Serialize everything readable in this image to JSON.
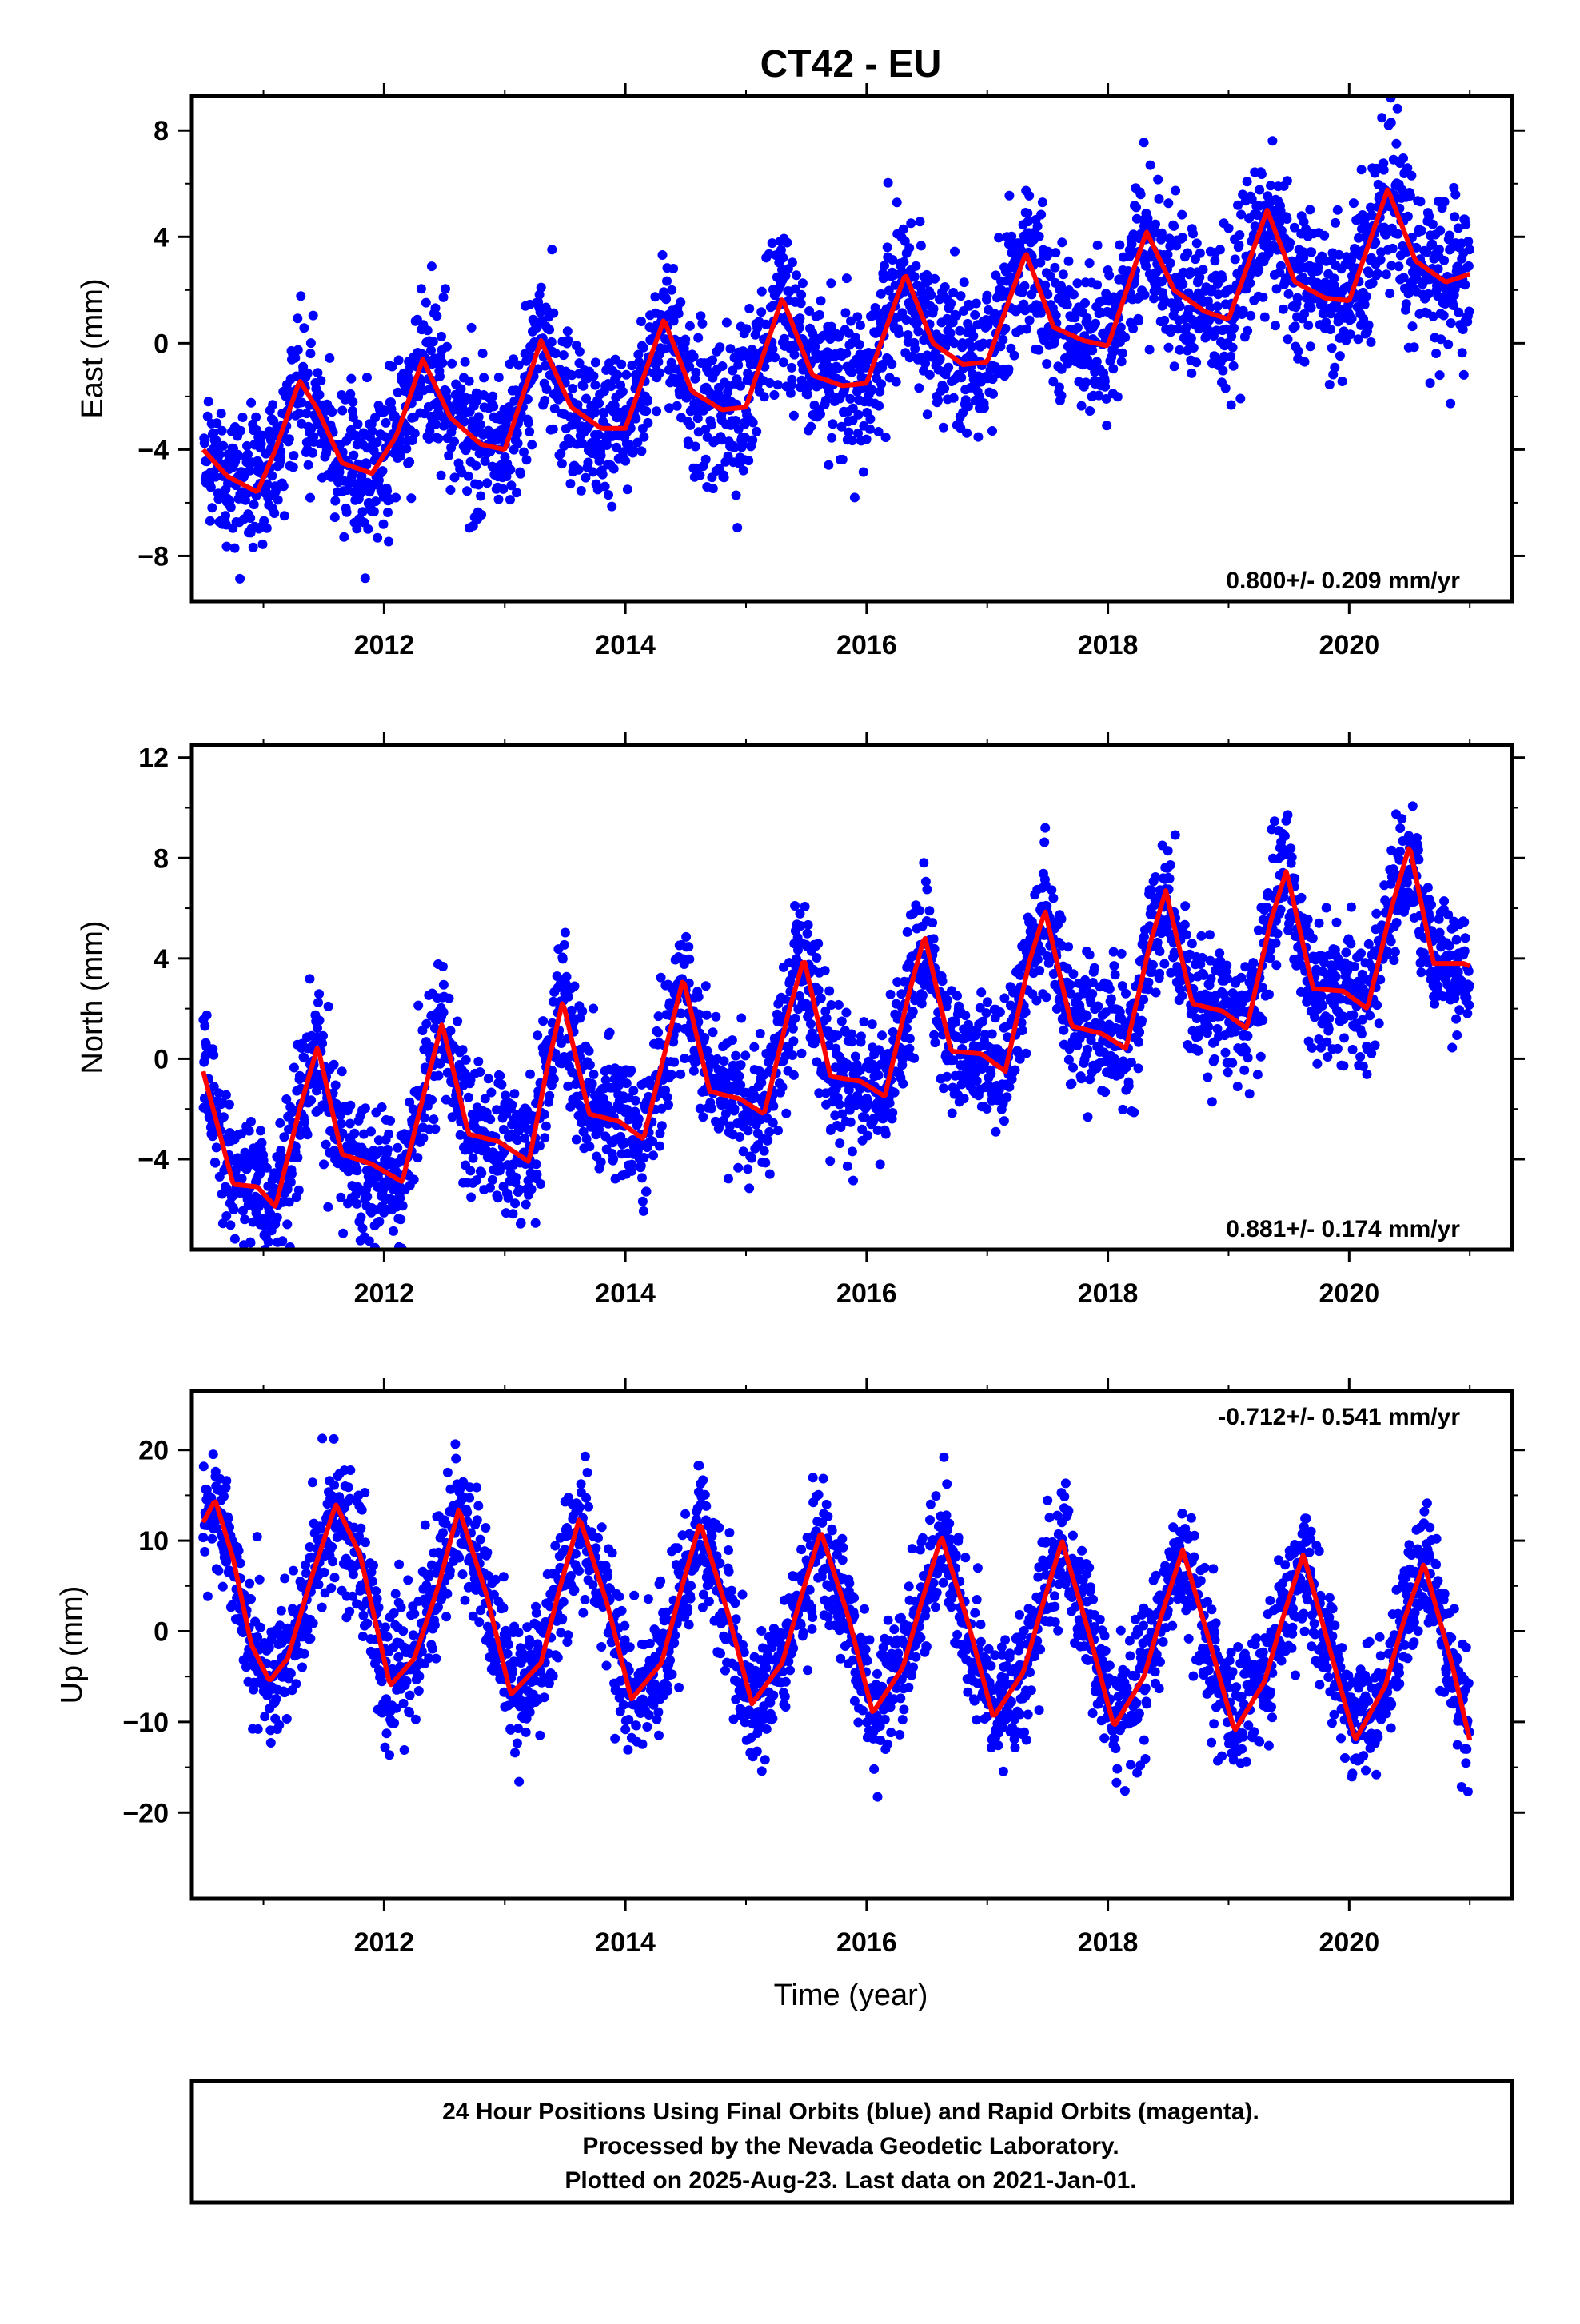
{
  "title": "CT42 - EU",
  "colors": {
    "points": "#0000ff",
    "model": "#ff0000",
    "frame": "#000000"
  },
  "x_axis_label": "Time (year)",
  "caption": [
    "24 Hour Positions Using Final Orbits (blue) and Rapid Orbits (magenta).",
    "Processed by the Nevada Geodetic Laboratory.",
    "Plotted on 2025-Aug-23. Last data on 2021-Jan-01."
  ],
  "chart_data": [
    {
      "type": "scatter",
      "component": "east",
      "ylabel": "East (mm)",
      "rate_label": "0.800+/- 0.209 mm/yr",
      "rate_position": "bottom-right",
      "xlim": [
        2010.4,
        2021.35
      ],
      "ylim": [
        -9.7,
        9.3
      ],
      "x_ticks": [
        2012,
        2014,
        2016,
        2018,
        2020
      ],
      "y_ticks": [
        -8,
        -4,
        0,
        4,
        8
      ],
      "grid": false,
      "series": [
        {
          "kind": "daily_positions",
          "x_range": [
            2010.5,
            2021.0
          ],
          "trend_mm_per_yr": 0.8,
          "points_per_year": 300,
          "scatter_sd_mm": 1.4,
          "color": "#0000ff"
        },
        {
          "kind": "model",
          "color": "#ff0000",
          "x": [
            2010.5,
            2010.7,
            2010.95,
            2011.1,
            2011.3,
            2011.45,
            2011.65,
            2011.9,
            2012.1,
            2012.32,
            2012.55,
            2012.8,
            2013.0,
            2013.3,
            2013.55,
            2013.8,
            2014.0,
            2014.32,
            2014.55,
            2014.8,
            2015.0,
            2015.3,
            2015.55,
            2015.8,
            2016.0,
            2016.32,
            2016.55,
            2016.8,
            2017.0,
            2017.32,
            2017.55,
            2017.8,
            2018.0,
            2018.32,
            2018.55,
            2018.8,
            2019.0,
            2019.32,
            2019.55,
            2019.8,
            2020.0,
            2020.32,
            2020.55,
            2020.8,
            2021.0
          ],
          "y": [
            -4.0,
            -5.0,
            -5.6,
            -4.0,
            -1.4,
            -2.5,
            -4.5,
            -4.9,
            -3.5,
            -0.6,
            -2.8,
            -3.8,
            -4.0,
            0.1,
            -2.4,
            -3.2,
            -3.2,
            0.9,
            -1.8,
            -2.5,
            -2.4,
            1.7,
            -1.2,
            -1.6,
            -1.5,
            2.6,
            0.0,
            -0.8,
            -0.7,
            3.4,
            0.6,
            0.1,
            -0.1,
            4.2,
            2.0,
            1.2,
            0.9,
            5.0,
            2.3,
            1.7,
            1.6,
            5.8,
            3.1,
            2.3,
            2.6
          ]
        }
      ]
    },
    {
      "type": "scatter",
      "component": "north",
      "ylabel": "North (mm)",
      "rate_label": "0.881+/- 0.174 mm/yr",
      "rate_position": "bottom-right",
      "xlim": [
        2010.4,
        2021.35
      ],
      "ylim": [
        -7.6,
        12.5
      ],
      "x_ticks": [
        2012,
        2014,
        2016,
        2018,
        2020
      ],
      "y_ticks": [
        -4,
        0,
        4,
        8,
        12
      ],
      "grid": false,
      "series": [
        {
          "kind": "daily_positions",
          "x_range": [
            2010.5,
            2021.0
          ],
          "trend_mm_per_yr": 0.881,
          "points_per_year": 300,
          "scatter_sd_mm": 1.3,
          "color": "#0000ff"
        },
        {
          "kind": "model",
          "color": "#ff0000",
          "x": [
            2010.5,
            2010.75,
            2010.95,
            2011.1,
            2011.3,
            2011.45,
            2011.65,
            2011.9,
            2012.15,
            2012.35,
            2012.48,
            2012.7,
            2012.95,
            2013.2,
            2013.35,
            2013.48,
            2013.7,
            2013.95,
            2014.15,
            2014.35,
            2014.48,
            2014.7,
            2014.95,
            2015.15,
            2015.35,
            2015.48,
            2015.7,
            2015.95,
            2016.15,
            2016.35,
            2016.48,
            2016.7,
            2016.95,
            2017.15,
            2017.35,
            2017.48,
            2017.7,
            2017.95,
            2018.15,
            2018.35,
            2018.48,
            2018.7,
            2018.95,
            2019.15,
            2019.35,
            2019.48,
            2019.7,
            2019.95,
            2020.15,
            2020.35,
            2020.5,
            2020.7,
            2020.95,
            2021.0
          ],
          "y": [
            -0.5,
            -5.0,
            -5.1,
            -5.9,
            -2.0,
            0.5,
            -3.8,
            -4.2,
            -4.9,
            -1.0,
            1.4,
            -3.0,
            -3.3,
            -4.1,
            -0.4,
            2.3,
            -2.2,
            -2.5,
            -3.2,
            0.7,
            3.2,
            -1.3,
            -1.6,
            -2.2,
            1.8,
            4.0,
            -0.7,
            -0.9,
            -1.5,
            2.6,
            4.9,
            0.3,
            0.2,
            -0.5,
            3.9,
            5.9,
            1.3,
            1.0,
            0.4,
            4.6,
            6.7,
            2.2,
            1.9,
            1.2,
            5.5,
            7.5,
            2.8,
            2.7,
            2.0,
            6.0,
            8.5,
            3.8,
            3.8,
            3.7
          ]
        }
      ]
    },
    {
      "type": "scatter",
      "component": "up",
      "ylabel": "Up (mm)",
      "rate_label": "-0.712+/- 0.541 mm/yr",
      "rate_position": "top-right",
      "xlim": [
        2010.4,
        2021.35
      ],
      "ylim": [
        -29.5,
        26.5
      ],
      "x_ticks": [
        2012,
        2014,
        2016,
        2018,
        2020
      ],
      "y_ticks": [
        -20,
        -10,
        0,
        10,
        20
      ],
      "grid": false,
      "series": [
        {
          "kind": "daily_positions",
          "x_range": [
            2010.5,
            2021.0
          ],
          "trend_mm_per_yr": -0.712,
          "points_per_year": 300,
          "scatter_sd_mm": 3.5,
          "color": "#0000ff"
        },
        {
          "kind": "model",
          "color": "#ff0000",
          "x": [
            2010.5,
            2010.6,
            2010.75,
            2010.9,
            2011.05,
            2011.2,
            2011.4,
            2011.6,
            2011.8,
            2012.05,
            2012.25,
            2012.45,
            2012.62,
            2012.85,
            2013.05,
            2013.3,
            2013.45,
            2013.62,
            2013.85,
            2014.05,
            2014.3,
            2014.45,
            2014.62,
            2014.85,
            2015.05,
            2015.3,
            2015.45,
            2015.62,
            2015.85,
            2016.05,
            2016.3,
            2016.45,
            2016.62,
            2016.85,
            2017.05,
            2017.3,
            2017.45,
            2017.62,
            2017.85,
            2018.05,
            2018.3,
            2018.45,
            2018.62,
            2018.85,
            2019.05,
            2019.3,
            2019.45,
            2019.62,
            2019.85,
            2020.05,
            2020.3,
            2020.45,
            2020.62,
            2020.85,
            2021.0
          ],
          "y": [
            12.0,
            14.5,
            8.0,
            -1.5,
            -5.5,
            -3.0,
            6.0,
            14.0,
            8.5,
            -6.0,
            -3.0,
            5.0,
            13.5,
            4.0,
            -7.0,
            -3.5,
            4.5,
            12.5,
            3.0,
            -7.5,
            -3.5,
            4.0,
            12.0,
            2.0,
            -8.0,
            -3.5,
            3.5,
            11.0,
            1.5,
            -9.0,
            -4.0,
            3.0,
            10.5,
            0.5,
            -9.5,
            -4.5,
            2.5,
            10.0,
            -0.5,
            -10.5,
            -5.0,
            2.0,
            9.0,
            -1.5,
            -11.0,
            -5.5,
            1.5,
            8.5,
            -2.5,
            -12.0,
            -6.0,
            1.0,
            7.5,
            -3.5,
            -12.0
          ]
        }
      ]
    }
  ]
}
